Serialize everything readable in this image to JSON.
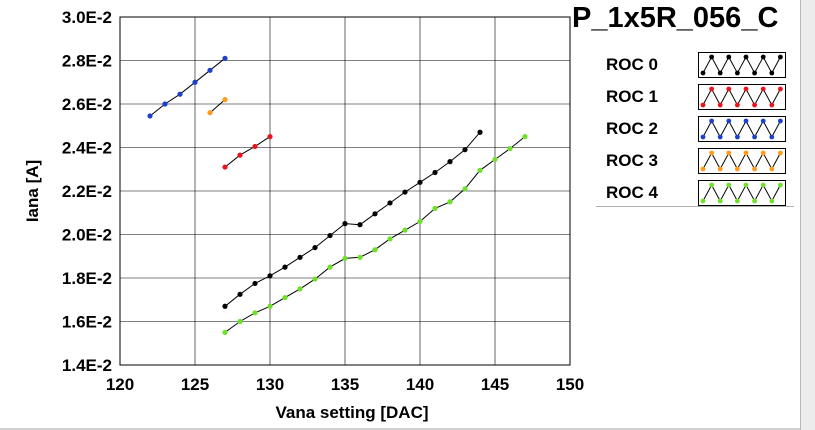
{
  "chart_data": {
    "type": "line",
    "title": "P_1x5R_056_C",
    "xlabel": "Vana setting [DAC]",
    "ylabel": "Iana [A]",
    "xlim": [
      120,
      150
    ],
    "ylim": [
      0.014,
      0.03
    ],
    "x_ticks": [
      120,
      125,
      130,
      135,
      140,
      145,
      150
    ],
    "y_ticks": [
      0.014,
      0.016,
      0.018,
      0.02,
      0.022,
      0.024,
      0.026,
      0.028,
      0.03
    ],
    "x_tick_labels": [
      "120",
      "125",
      "130",
      "135",
      "140",
      "145",
      "150"
    ],
    "y_tick_labels": [
      "1.4E-2",
      "1.6E-2",
      "1.8E-2",
      "2.0E-2",
      "2.2E-2",
      "2.4E-2",
      "2.6E-2",
      "2.8E-2",
      "3.0E-2"
    ],
    "grid": true,
    "legend_position": "top-right",
    "series": [
      {
        "name": "ROC 0",
        "color": "#000000",
        "x": [
          127,
          128,
          129,
          130,
          131,
          132,
          133,
          134,
          135,
          136,
          137,
          138,
          139,
          140,
          141,
          142,
          143,
          144
        ],
        "y": [
          0.0167,
          0.01725,
          0.01775,
          0.0181,
          0.0185,
          0.01895,
          0.0194,
          0.01995,
          0.0205,
          0.02045,
          0.02095,
          0.02145,
          0.02195,
          0.0224,
          0.02285,
          0.02335,
          0.0239,
          0.0247
        ]
      },
      {
        "name": "ROC 1",
        "color": "#e8141a",
        "x": [
          127,
          128,
          129,
          130
        ],
        "y": [
          0.0231,
          0.02365,
          0.02405,
          0.0245
        ]
      },
      {
        "name": "ROC 2",
        "color": "#1e40c8",
        "x": [
          122,
          123,
          124,
          125,
          126,
          127
        ],
        "y": [
          0.02545,
          0.026,
          0.02645,
          0.027,
          0.02755,
          0.0281
        ]
      },
      {
        "name": "ROC 3",
        "color": "#ff9a1a",
        "x": [
          126,
          127
        ],
        "y": [
          0.0256,
          0.0262
        ]
      },
      {
        "name": "ROC 4",
        "color": "#6ee02a",
        "x": [
          127,
          128,
          129,
          130,
          131,
          132,
          133,
          134,
          135,
          136,
          137,
          138,
          139,
          140,
          141,
          142,
          143,
          144,
          145,
          146,
          147
        ],
        "y": [
          0.0155,
          0.016,
          0.0164,
          0.0167,
          0.0171,
          0.0175,
          0.01795,
          0.0185,
          0.0189,
          0.01895,
          0.0193,
          0.0198,
          0.0202,
          0.0206,
          0.0212,
          0.0215,
          0.0221,
          0.02295,
          0.02345,
          0.02395,
          0.0245
        ]
      }
    ]
  }
}
